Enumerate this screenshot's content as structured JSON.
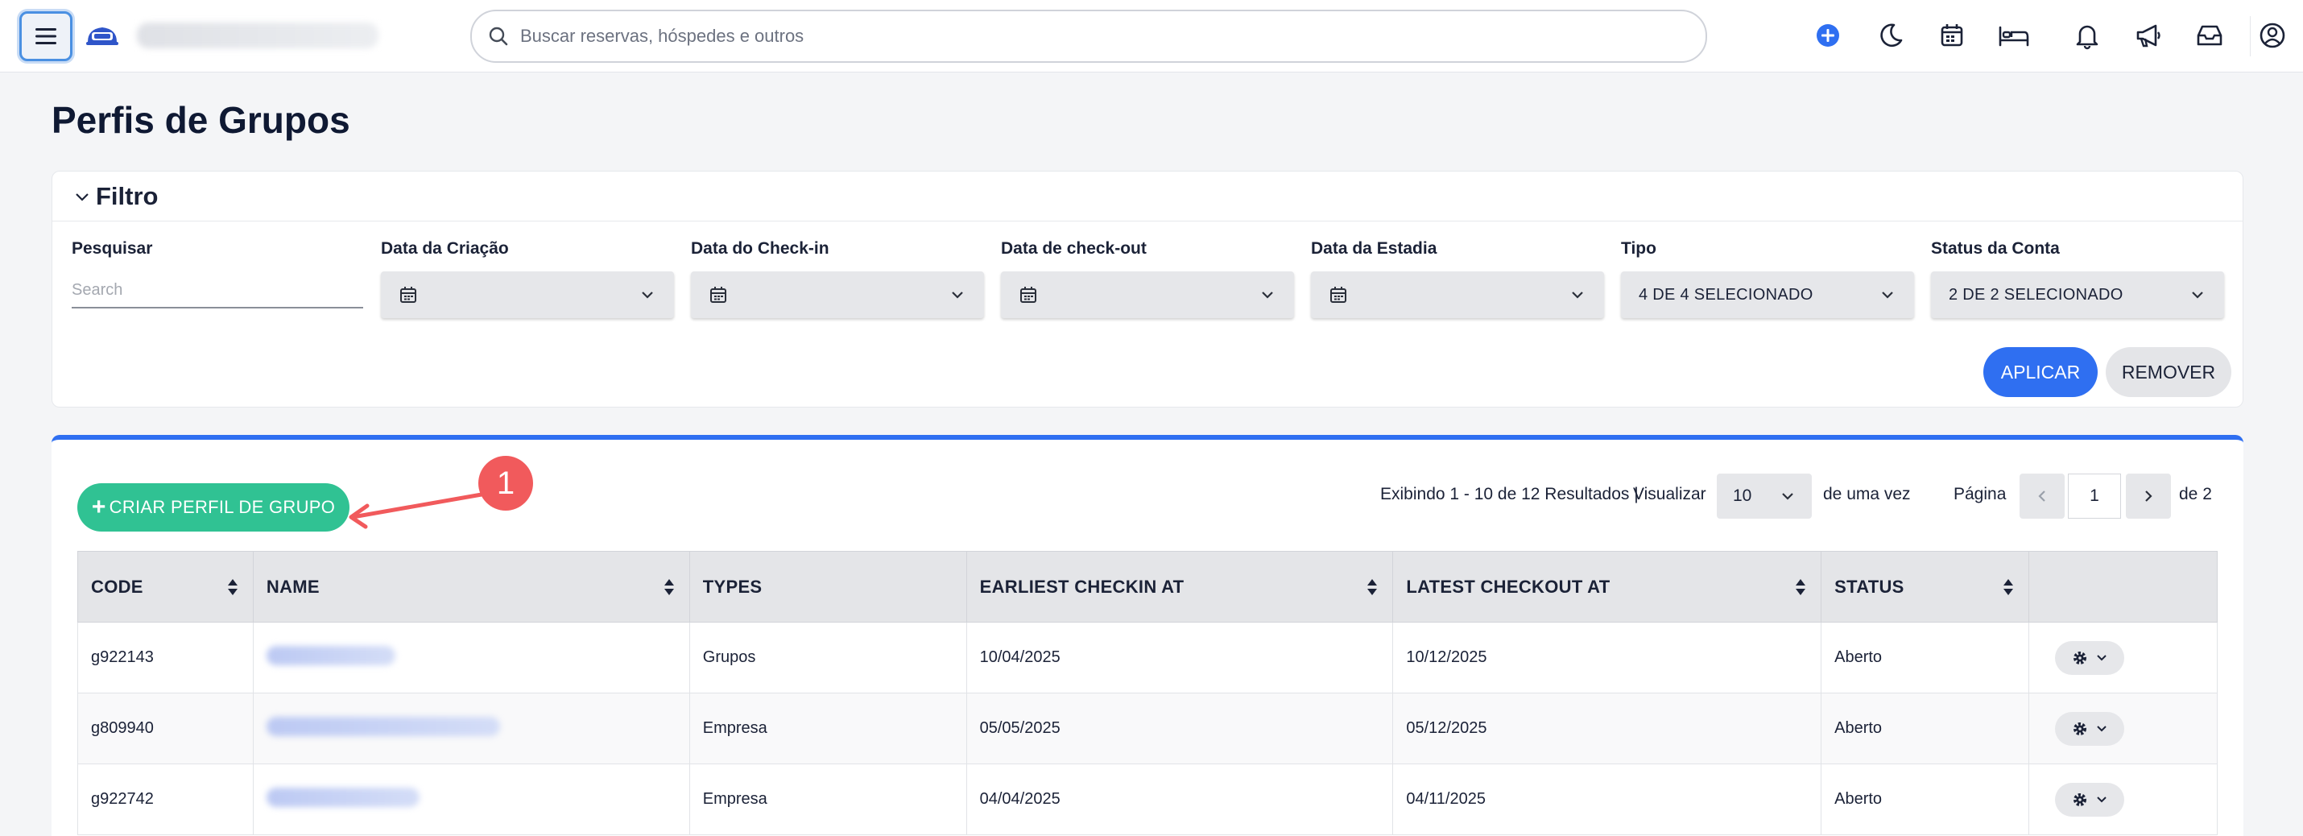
{
  "header": {
    "search_placeholder": "Buscar reservas, hóspedes e outros",
    "icons": [
      "menu-icon",
      "logo",
      "plus-circle-icon",
      "moon-icon",
      "calendar-icon",
      "bed-icon",
      "bell-icon",
      "megaphone-icon",
      "inbox-icon",
      "user-circle-icon"
    ],
    "accent_color": "#2f6ff1"
  },
  "page": {
    "title": "Perfis de Grupos"
  },
  "filter": {
    "title": "Filtro",
    "search_label": "Pesquisar",
    "search_placeholder": "Search",
    "fields": [
      {
        "label": "Data da Criação",
        "value": ""
      },
      {
        "label": "Data do Check-in",
        "value": ""
      },
      {
        "label": "Data de check-out",
        "value": ""
      },
      {
        "label": "Data da Estadia",
        "value": ""
      },
      {
        "label": "Tipo",
        "value": "4 DE 4 SELECIONADO"
      },
      {
        "label": "Status da Conta",
        "value": "2 DE 2 SELECIONADO"
      }
    ],
    "apply_label": "APLICAR",
    "remove_label": "REMOVER"
  },
  "toolbar": {
    "create_label": "CRIAR PERFIL DE GRUPO",
    "annotation_number": "1",
    "results_text": "Exibindo 1 - 10 de 12 Resultados |",
    "visualizar_label": "Visualizar",
    "page_size": "10",
    "de_uma_vez": "de uma vez",
    "pagina_label": "Página",
    "current_page": "1",
    "total_pages_text": "de 2"
  },
  "table": {
    "columns": [
      "CODE",
      "NAME",
      "TYPES",
      "EARLIEST CHECKIN AT",
      "LATEST CHECKOUT AT",
      "STATUS",
      ""
    ],
    "rows": [
      {
        "code": "g922143",
        "types": "Grupos",
        "checkin": "10/04/2025",
        "checkout": "10/12/2025",
        "status": "Aberto"
      },
      {
        "code": "g809940",
        "types": "Empresa",
        "checkin": "05/05/2025",
        "checkout": "05/12/2025",
        "status": "Aberto"
      },
      {
        "code": "g922742",
        "types": "Empresa",
        "checkin": "04/04/2025",
        "checkout": "04/11/2025",
        "status": "Aberto"
      }
    ]
  }
}
